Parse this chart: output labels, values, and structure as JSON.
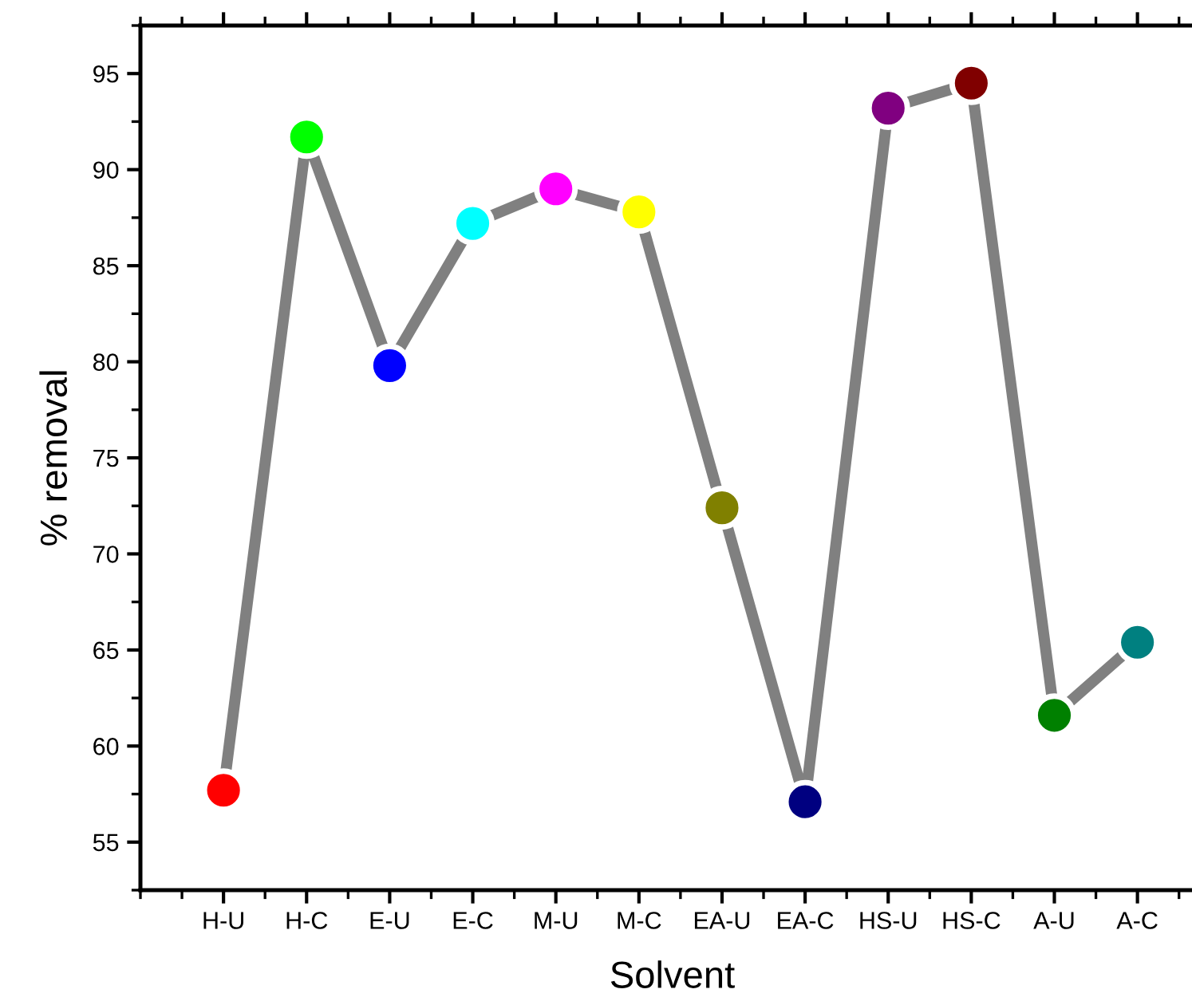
{
  "chart_data": {
    "type": "line",
    "xlabel": "Solvent",
    "ylabel": "% removal",
    "categories": [
      "H-U",
      "H-C",
      "E-U",
      "E-C",
      "M-U",
      "M-C",
      "EA-U",
      "EA-C",
      "HS-U",
      "HS-C",
      "A-U",
      "A-C"
    ],
    "series": [
      {
        "color": "#808080",
        "values": [
          57.7,
          91.7,
          79.8,
          87.2,
          89.0,
          87.8,
          72.4,
          57.1,
          93.2,
          94.5,
          61.6,
          65.4
        ],
        "colors": [
          "#ff0000",
          "#00ff00",
          "#0000ff",
          "#00ffff",
          "#ff00ff",
          "#ffff00",
          "#808000",
          "#000080",
          "#800080",
          "#800000",
          "#008000",
          "#008080"
        ]
      }
    ],
    "marker": "circle",
    "line_style": "solid",
    "ylim": [
      52.5,
      97.5
    ],
    "yticks": [
      55,
      60,
      65,
      70,
      75,
      80,
      85,
      90,
      95
    ],
    "grid": false,
    "legend": false
  }
}
